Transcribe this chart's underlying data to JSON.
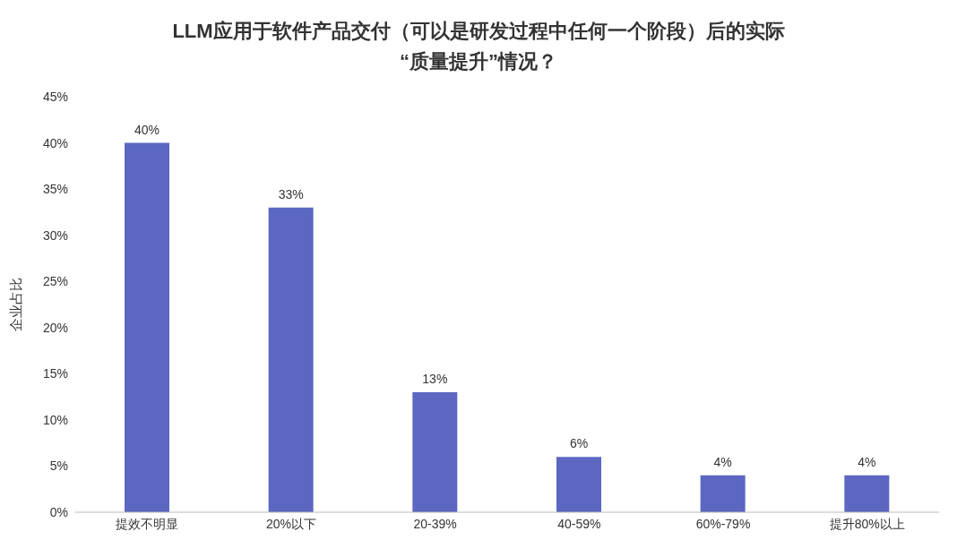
{
  "chart_data": {
    "type": "bar",
    "title": "LLM应用于软件产品交付（可以是研发过程中任何一个阶段）后的实际\n“质量提升”情况？",
    "ylabel": "企业占比",
    "categories": [
      "提效不明显",
      "20%以下",
      "20-39%",
      "40-59%",
      "60%-79%",
      "提升80%以上"
    ],
    "values": [
      40,
      33,
      13,
      6,
      4,
      4
    ],
    "value_labels": [
      "40%",
      "33%",
      "13%",
      "6%",
      "4%",
      "4%"
    ],
    "color": "#5b67c0",
    "ylim": [
      0,
      45
    ],
    "yticks": [
      {
        "value": 0,
        "label": "0%"
      },
      {
        "value": 5,
        "label": "5%"
      },
      {
        "value": 10,
        "label": "10%"
      },
      {
        "value": 15,
        "label": "15%"
      },
      {
        "value": 20,
        "label": "20%"
      },
      {
        "value": 25,
        "label": "25%"
      },
      {
        "value": 30,
        "label": "30%"
      },
      {
        "value": 35,
        "label": "35%"
      },
      {
        "value": 40,
        "label": "40%"
      },
      {
        "value": 45,
        "label": "45%"
      }
    ],
    "grid": false,
    "legend": false
  }
}
